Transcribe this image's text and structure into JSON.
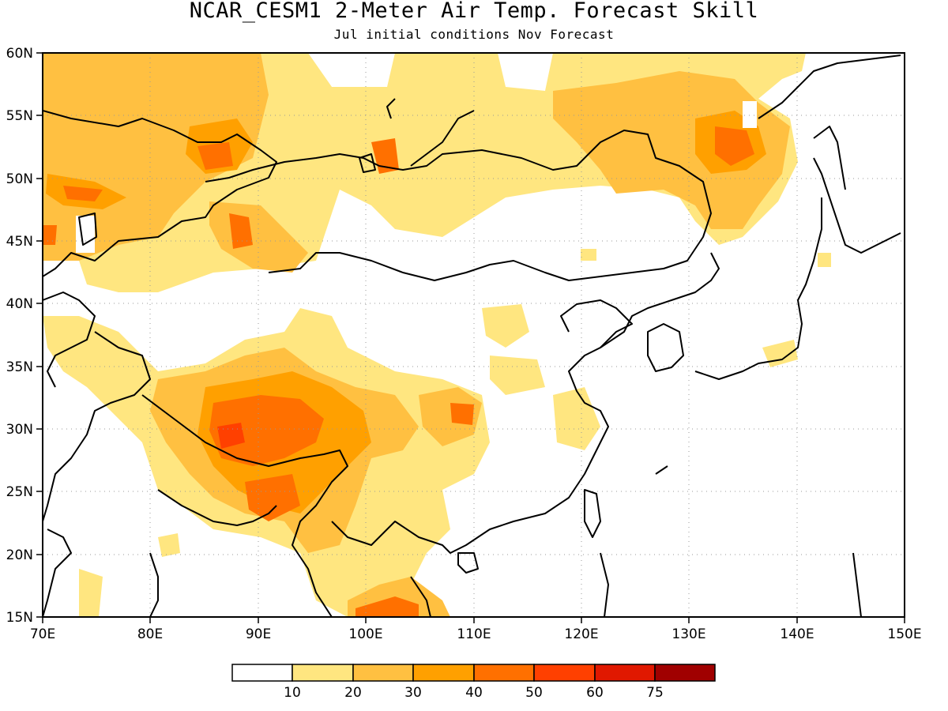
{
  "title": "NCAR_CESM1 2-Meter Air Temp. Forecast Skill",
  "subtitle": "Jul initial conditions  Nov Forecast",
  "map": {
    "lon_range": [
      70,
      150
    ],
    "lat_range": [
      15,
      60
    ],
    "lon_ticks": [
      "70E",
      "80E",
      "90E",
      "100E",
      "110E",
      "120E",
      "130E",
      "140E",
      "150E"
    ],
    "lat_ticks": [
      "60N",
      "55N",
      "50N",
      "45N",
      "40N",
      "35N",
      "30N",
      "25N",
      "20N",
      "15N"
    ],
    "grid": "dotted",
    "coastlines": true
  },
  "colorbar": {
    "colors": [
      "#ffffff",
      "#ffe680",
      "#ffc041",
      "#ffa000",
      "#ff7000",
      "#ff4000",
      "#e01800",
      "#a00000"
    ],
    "labels": [
      "10",
      "20",
      "30",
      "40",
      "50",
      "60",
      "75"
    ]
  }
}
